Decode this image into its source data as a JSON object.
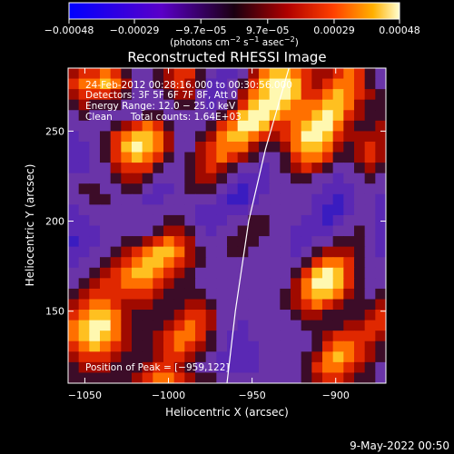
{
  "chart_data": {
    "type": "heatmap",
    "title": "Reconstructed RHESSI Image",
    "xlabel": "Heliocentric X (arcsec)",
    "ylabel": "Heliocentric Y (arcsec)",
    "xlim": [
      -1060,
      -870
    ],
    "ylim": [
      110,
      285
    ],
    "x_ticks": [
      {
        "value": -1050,
        "label": "−1050"
      },
      {
        "value": -1000,
        "label": "−1000"
      },
      {
        "value": -950,
        "label": "−950"
      },
      {
        "value": -900,
        "label": "−900"
      }
    ],
    "y_ticks": [
      {
        "value": 150,
        "label": "150"
      },
      {
        "value": 200,
        "label": "200"
      },
      {
        "value": 250,
        "label": "250"
      }
    ],
    "colorbar": {
      "min": -0.00048,
      "max": 0.00048,
      "ticks": [
        {
          "value": -0.00048,
          "label": "−0.00048"
        },
        {
          "value": -0.00029,
          "label": "−0.00029"
        },
        {
          "value": -9.7e-05,
          "label": "−9.7e−05"
        },
        {
          "value": 9.7e-05,
          "label": "9.7e−05"
        },
        {
          "value": 0.00029,
          "label": "0.00029"
        },
        {
          "value": 0.00048,
          "label": "0.00048"
        }
      ],
      "units_prefix": "(photons cm",
      "units_exp1": "−2",
      "units_mid": " s",
      "units_exp2": "−1",
      "units_mid2": " asec",
      "units_exp3": "−2",
      "units_suffix": ")"
    },
    "annotations": {
      "time_range": "24-Feb-2012 00:28:16.000 to 00:30:56.000",
      "detectors": "Detectors: 3F 5F 6F 7F 8F, Att 0",
      "energy_range": "Energy Range: 12.0 − 25.0 keV",
      "method": "Clean      Total counts: 1.64E+03",
      "peak": "Position of Peak = [−959,122]"
    },
    "limb_curve": [
      [
        -965,
        110
      ],
      [
        -960,
        150
      ],
      [
        -952,
        200
      ],
      [
        -942,
        240
      ],
      [
        -928,
        285
      ]
    ],
    "intensity_grid": {
      "x_start": -1060,
      "x_step": 6.3333,
      "y_top": 285,
      "y_step": 5.8333,
      "rows": [
        [
          5,
          6,
          6,
          7,
          6,
          4,
          3,
          3,
          4,
          5,
          6,
          6,
          4,
          3,
          2,
          2,
          3,
          5,
          7,
          8,
          8,
          7,
          6,
          5,
          5,
          6,
          7,
          6,
          4,
          3
        ],
        [
          6,
          7,
          7,
          8,
          7,
          5,
          3,
          3,
          4,
          5,
          6,
          5,
          4,
          2,
          2,
          3,
          4,
          6,
          8,
          9,
          9,
          8,
          6,
          5,
          6,
          7,
          7,
          6,
          4,
          3
        ],
        [
          5,
          6,
          6,
          6,
          5,
          4,
          3,
          3,
          3,
          4,
          5,
          5,
          3,
          2,
          2,
          3,
          5,
          7,
          8,
          9,
          9,
          8,
          6,
          6,
          7,
          8,
          7,
          6,
          5,
          4
        ],
        [
          4,
          5,
          4,
          4,
          4,
          3,
          3,
          3,
          3,
          3,
          4,
          4,
          3,
          2,
          3,
          4,
          6,
          8,
          9,
          9,
          8,
          7,
          7,
          7,
          8,
          8,
          7,
          5,
          4,
          4
        ],
        [
          3,
          4,
          3,
          3,
          3,
          3,
          3,
          4,
          4,
          3,
          3,
          3,
          3,
          3,
          4,
          6,
          8,
          9,
          9,
          8,
          7,
          7,
          7,
          8,
          9,
          8,
          6,
          5,
          4,
          4
        ],
        [
          3,
          3,
          3,
          3,
          4,
          5,
          6,
          7,
          6,
          4,
          3,
          3,
          3,
          4,
          6,
          7,
          9,
          9,
          8,
          6,
          6,
          7,
          8,
          9,
          9,
          7,
          5,
          4,
          4,
          5
        ],
        [
          2,
          3,
          3,
          4,
          6,
          7,
          8,
          8,
          7,
          5,
          3,
          3,
          4,
          5,
          7,
          8,
          8,
          7,
          6,
          5,
          6,
          7,
          9,
          9,
          8,
          6,
          5,
          5,
          5,
          5
        ],
        [
          2,
          2,
          3,
          4,
          6,
          8,
          9,
          8,
          7,
          5,
          3,
          3,
          5,
          6,
          7,
          7,
          7,
          5,
          4,
          4,
          5,
          7,
          8,
          8,
          7,
          5,
          4,
          5,
          6,
          5
        ],
        [
          2,
          2,
          3,
          4,
          6,
          7,
          8,
          7,
          6,
          4,
          3,
          4,
          5,
          6,
          7,
          6,
          5,
          4,
          3,
          3,
          4,
          6,
          7,
          7,
          6,
          4,
          4,
          5,
          6,
          5
        ],
        [
          2,
          2,
          3,
          3,
          5,
          6,
          6,
          6,
          4,
          3,
          3,
          4,
          5,
          6,
          5,
          4,
          3,
          3,
          2,
          3,
          4,
          5,
          6,
          5,
          4,
          3,
          3,
          4,
          5,
          4
        ],
        [
          3,
          3,
          3,
          3,
          4,
          5,
          5,
          4,
          3,
          3,
          3,
          4,
          5,
          5,
          4,
          3,
          2,
          2,
          2,
          3,
          3,
          4,
          4,
          3,
          3,
          2,
          3,
          3,
          4,
          3
        ],
        [
          3,
          4,
          4,
          3,
          3,
          4,
          4,
          3,
          2,
          2,
          3,
          4,
          4,
          4,
          3,
          2,
          1,
          2,
          2,
          3,
          3,
          3,
          3,
          3,
          2,
          2,
          2,
          3,
          3,
          3
        ],
        [
          3,
          3,
          4,
          4,
          3,
          3,
          3,
          2,
          2,
          3,
          3,
          3,
          3,
          3,
          2,
          1,
          1,
          2,
          3,
          3,
          3,
          3,
          3,
          2,
          2,
          1,
          2,
          3,
          3,
          2
        ],
        [
          2,
          3,
          3,
          3,
          3,
          3,
          3,
          3,
          3,
          3,
          3,
          3,
          2,
          2,
          2,
          2,
          2,
          3,
          3,
          3,
          3,
          3,
          3,
          2,
          1,
          1,
          2,
          3,
          3,
          2
        ],
        [
          2,
          2,
          3,
          3,
          3,
          3,
          3,
          3,
          3,
          4,
          4,
          3,
          2,
          2,
          2,
          3,
          3,
          4,
          4,
          3,
          3,
          3,
          2,
          2,
          1,
          2,
          3,
          3,
          3,
          2
        ],
        [
          2,
          2,
          2,
          3,
          3,
          3,
          3,
          3,
          4,
          5,
          5,
          4,
          3,
          2,
          3,
          3,
          4,
          4,
          4,
          3,
          3,
          2,
          2,
          2,
          2,
          3,
          3,
          4,
          3,
          2
        ],
        [
          1,
          2,
          2,
          3,
          3,
          4,
          4,
          5,
          6,
          7,
          6,
          5,
          3,
          3,
          3,
          4,
          4,
          4,
          3,
          3,
          3,
          2,
          2,
          3,
          3,
          4,
          4,
          4,
          3,
          2
        ],
        [
          2,
          2,
          3,
          3,
          4,
          5,
          6,
          7,
          8,
          8,
          7,
          5,
          4,
          3,
          3,
          4,
          4,
          3,
          3,
          3,
          3,
          2,
          3,
          4,
          5,
          5,
          5,
          4,
          3,
          2
        ],
        [
          2,
          3,
          3,
          4,
          5,
          6,
          7,
          8,
          8,
          7,
          6,
          5,
          4,
          3,
          3,
          3,
          3,
          3,
          3,
          3,
          3,
          3,
          4,
          6,
          7,
          7,
          6,
          4,
          3,
          3
        ],
        [
          3,
          3,
          4,
          5,
          6,
          7,
          8,
          8,
          7,
          6,
          5,
          4,
          3,
          3,
          3,
          3,
          3,
          3,
          3,
          3,
          3,
          4,
          6,
          8,
          9,
          8,
          6,
          4,
          3,
          3
        ],
        [
          3,
          4,
          5,
          6,
          6,
          7,
          7,
          7,
          6,
          5,
          4,
          4,
          3,
          3,
          3,
          3,
          3,
          3,
          3,
          3,
          3,
          5,
          7,
          9,
          9,
          8,
          6,
          4,
          3,
          3
        ],
        [
          4,
          5,
          6,
          6,
          6,
          6,
          6,
          6,
          5,
          4,
          4,
          4,
          4,
          3,
          3,
          3,
          3,
          3,
          3,
          3,
          4,
          5,
          7,
          8,
          8,
          7,
          5,
          4,
          3,
          4
        ],
        [
          5,
          6,
          7,
          7,
          6,
          5,
          5,
          5,
          4,
          4,
          4,
          5,
          5,
          4,
          3,
          3,
          3,
          3,
          3,
          3,
          4,
          5,
          6,
          7,
          6,
          5,
          4,
          4,
          4,
          5
        ],
        [
          6,
          7,
          8,
          8,
          7,
          5,
          4,
          4,
          4,
          4,
          5,
          6,
          6,
          5,
          3,
          3,
          3,
          3,
          3,
          3,
          3,
          4,
          5,
          5,
          4,
          4,
          4,
          4,
          5,
          6
        ],
        [
          7,
          8,
          9,
          9,
          7,
          5,
          4,
          4,
          4,
          5,
          6,
          7,
          6,
          5,
          3,
          3,
          2,
          3,
          3,
          3,
          3,
          3,
          4,
          4,
          4,
          4,
          5,
          5,
          6,
          6
        ],
        [
          7,
          8,
          9,
          8,
          7,
          5,
          4,
          4,
          5,
          6,
          7,
          7,
          6,
          4,
          3,
          2,
          2,
          3,
          3,
          3,
          3,
          3,
          3,
          4,
          5,
          6,
          6,
          6,
          6,
          5
        ],
        [
          6,
          7,
          8,
          7,
          6,
          5,
          4,
          4,
          5,
          6,
          7,
          6,
          5,
          4,
          3,
          2,
          2,
          2,
          3,
          3,
          3,
          3,
          3,
          4,
          6,
          7,
          7,
          6,
          5,
          4
        ],
        [
          5,
          6,
          6,
          6,
          5,
          4,
          4,
          4,
          5,
          6,
          6,
          5,
          4,
          3,
          2,
          2,
          2,
          2,
          3,
          3,
          3,
          3,
          4,
          5,
          7,
          8,
          7,
          6,
          5,
          4
        ],
        [
          4,
          5,
          5,
          5,
          4,
          4,
          4,
          5,
          6,
          6,
          5,
          4,
          3,
          3,
          2,
          2,
          2,
          2,
          3,
          3,
          3,
          3,
          4,
          6,
          7,
          7,
          6,
          5,
          4,
          3
        ],
        [
          4,
          4,
          4,
          4,
          4,
          4,
          5,
          6,
          7,
          7,
          6,
          5,
          4,
          4,
          3,
          3,
          3,
          3,
          3,
          3,
          3,
          3,
          4,
          5,
          6,
          6,
          5,
          4,
          4,
          3
        ]
      ]
    }
  },
  "footer": {
    "timestamp": "9-May-2022 00:50"
  }
}
